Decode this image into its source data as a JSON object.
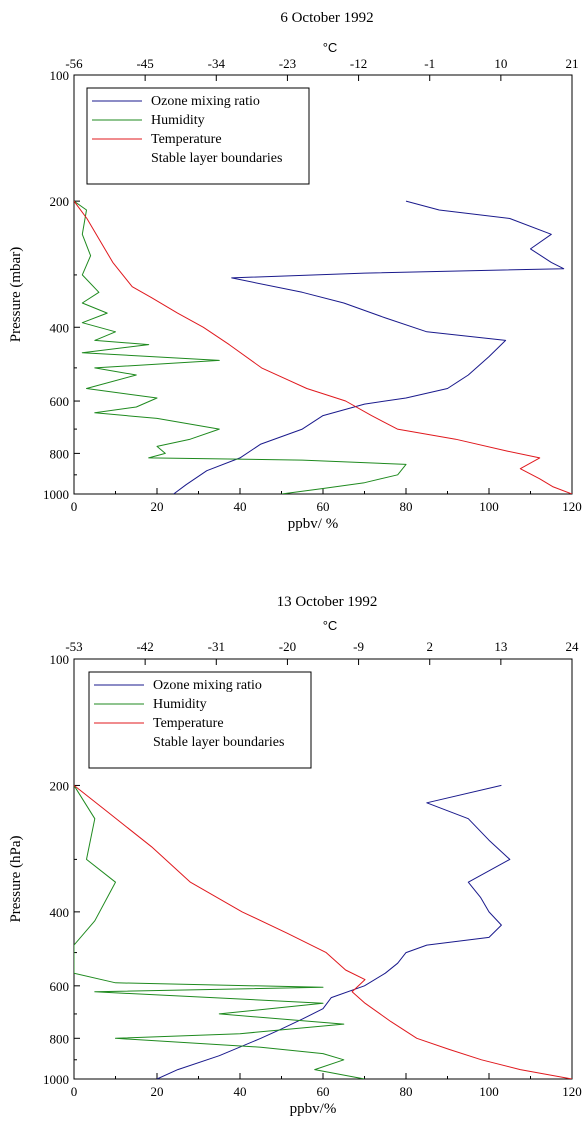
{
  "chart_data": [
    {
      "type": "line",
      "title": "6 October 1992",
      "xlabel": "ppbv/ %",
      "ylabel": "Pressure (mbar)",
      "top_axis_label": "°C",
      "xlim": [
        0,
        120
      ],
      "ylim": [
        100,
        1000
      ],
      "x_ticks": [
        "0",
        "20",
        "40",
        "60",
        "80",
        "100",
        "120"
      ],
      "top_ticks": [
        "-56",
        "-45",
        "-34",
        "-23",
        "-12",
        "-1",
        "10",
        "21"
      ],
      "y_ticks": [
        "100",
        "200",
        "400",
        "600",
        "800",
        "1000"
      ],
      "grid": false,
      "legend_position": "top-left",
      "legend": [
        {
          "label": "Ozone mixing ratio",
          "color": "#1a1a8c"
        },
        {
          "label": "Humidity",
          "color": "#1f8a1f"
        },
        {
          "label": "Temperature",
          "color": "#e0191e"
        },
        {
          "label": "Stable layer boundaries",
          "color": "none"
        }
      ],
      "series": [
        {
          "name": "Ozone mixing ratio",
          "color": "#1a1a8c",
          "points": [
            [
              24,
              1000
            ],
            [
              27,
              950
            ],
            [
              32,
              880
            ],
            [
              40,
              820
            ],
            [
              45,
              760
            ],
            [
              55,
              700
            ],
            [
              60,
              650
            ],
            [
              70,
              610
            ],
            [
              80,
              590
            ],
            [
              90,
              560
            ],
            [
              95,
              520
            ],
            [
              100,
              470
            ],
            [
              104,
              430
            ],
            [
              85,
              410
            ],
            [
              75,
              380
            ],
            [
              65,
              350
            ],
            [
              55,
              330
            ],
            [
              38,
              305
            ],
            [
              70,
              297
            ],
            [
              118,
              290
            ],
            [
              115,
              280
            ],
            [
              110,
              260
            ],
            [
              115,
              240
            ],
            [
              105,
              220
            ],
            [
              88,
              210
            ],
            [
              80,
              200
            ]
          ]
        },
        {
          "name": "Humidity",
          "color": "#1f8a1f",
          "points": [
            [
              50,
              1000
            ],
            [
              60,
              970
            ],
            [
              70,
              940
            ],
            [
              78,
              900
            ],
            [
              80,
              850
            ],
            [
              55,
              830
            ],
            [
              18,
              820
            ],
            [
              22,
              800
            ],
            [
              20,
              770
            ],
            [
              28,
              740
            ],
            [
              35,
              700
            ],
            [
              20,
              660
            ],
            [
              5,
              640
            ],
            [
              15,
              620
            ],
            [
              20,
              590
            ],
            [
              3,
              560
            ],
            [
              15,
              520
            ],
            [
              5,
              500
            ],
            [
              35,
              480
            ],
            [
              2,
              460
            ],
            [
              18,
              440
            ],
            [
              5,
              430
            ],
            [
              10,
              410
            ],
            [
              2,
              390
            ],
            [
              8,
              370
            ],
            [
              2,
              350
            ],
            [
              6,
              330
            ],
            [
              2,
              300
            ],
            [
              4,
              270
            ],
            [
              2,
              240
            ],
            [
              3,
              210
            ],
            [
              0,
              200
            ]
          ]
        },
        {
          "name": "Temperature",
          "color": "#e0191e",
          "points": [
            [
              21,
              1000
            ],
            [
              18,
              960
            ],
            [
              16,
              920
            ],
            [
              13,
              870
            ],
            [
              16,
              820
            ],
            [
              11,
              790
            ],
            [
              3,
              740
            ],
            [
              -6,
              700
            ],
            [
              -10,
              650
            ],
            [
              -14,
              600
            ],
            [
              -20,
              560
            ],
            [
              -27,
              500
            ],
            [
              -32,
              440
            ],
            [
              -36,
              400
            ],
            [
              -40,
              370
            ],
            [
              -44,
              340
            ],
            [
              -47,
              320
            ],
            [
              -50,
              280
            ],
            [
              -54,
              220
            ],
            [
              -56,
              200
            ]
          ]
        }
      ]
    },
    {
      "type": "line",
      "title": "13 October 1992",
      "xlabel": "ppbv/%",
      "ylabel": "Pressure (hPa)",
      "top_axis_label": "°C",
      "xlim": [
        0,
        120
      ],
      "ylim": [
        100,
        1000
      ],
      "x_ticks": [
        "0",
        "20",
        "40",
        "60",
        "80",
        "100",
        "120"
      ],
      "top_ticks": [
        "-53",
        "-42",
        "-31",
        "-20",
        "-9",
        "2",
        "13",
        "24"
      ],
      "y_ticks": [
        "100",
        "200",
        "400",
        "600",
        "800",
        "1000"
      ],
      "grid": false,
      "legend_position": "top-left",
      "legend": [
        {
          "label": "Ozone mixing ratio",
          "color": "#1a1a8c"
        },
        {
          "label": "Humidity",
          "color": "#1f8a1f"
        },
        {
          "label": "Temperature",
          "color": "#e0191e"
        },
        {
          "label": "Stable layer boundaries",
          "color": "none"
        }
      ],
      "series": [
        {
          "name": "Ozone mixing ratio",
          "color": "#1a1a8c",
          "points": [
            [
              20,
              1000
            ],
            [
              25,
              950
            ],
            [
              35,
              880
            ],
            [
              45,
              800
            ],
            [
              50,
              760
            ],
            [
              55,
              720
            ],
            [
              60,
              680
            ],
            [
              62,
              640
            ],
            [
              70,
              600
            ],
            [
              75,
              560
            ],
            [
              78,
              530
            ],
            [
              80,
              500
            ],
            [
              85,
              480
            ],
            [
              100,
              460
            ],
            [
              103,
              430
            ],
            [
              100,
              400
            ],
            [
              98,
              370
            ],
            [
              95,
              340
            ],
            [
              105,
              300
            ],
            [
              100,
              270
            ],
            [
              95,
              240
            ],
            [
              85,
              220
            ],
            [
              103,
              200
            ]
          ]
        },
        {
          "name": "Humidity",
          "color": "#1f8a1f",
          "points": [
            [
              70,
              1000
            ],
            [
              58,
              950
            ],
            [
              65,
              900
            ],
            [
              60,
              870
            ],
            [
              45,
              840
            ],
            [
              10,
              800
            ],
            [
              40,
              780
            ],
            [
              65,
              740
            ],
            [
              35,
              700
            ],
            [
              60,
              660
            ],
            [
              5,
              620
            ],
            [
              60,
              605
            ],
            [
              10,
              590
            ],
            [
              0,
              560
            ],
            [
              0,
              480
            ],
            [
              5,
              420
            ],
            [
              10,
              340
            ],
            [
              3,
              300
            ],
            [
              5,
              240
            ],
            [
              0,
              200
            ]
          ]
        },
        {
          "name": "Temperature",
          "color": "#e0191e",
          "points": [
            [
              24,
              1000
            ],
            [
              16,
              950
            ],
            [
              10,
              900
            ],
            [
              5,
              850
            ],
            [
              0,
              800
            ],
            [
              -4,
              730
            ],
            [
              -8,
              660
            ],
            [
              -10,
              620
            ],
            [
              -8,
              580
            ],
            [
              -11,
              550
            ],
            [
              -14,
              500
            ],
            [
              -20,
              450
            ],
            [
              -27,
              400
            ],
            [
              -35,
              340
            ],
            [
              -41,
              280
            ],
            [
              -48,
              230
            ],
            [
              -53,
              200
            ]
          ]
        }
      ]
    }
  ]
}
